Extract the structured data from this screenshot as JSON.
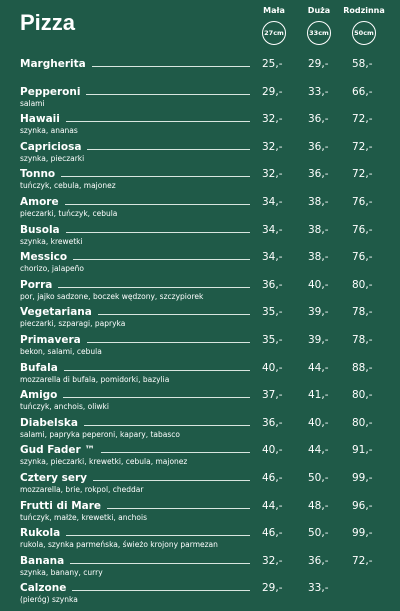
{
  "header": {
    "title": "Pizza"
  },
  "columns": [
    {
      "label": "Mała",
      "size": "27cm"
    },
    {
      "label": "Duża",
      "size": "33cm"
    },
    {
      "label": "Rodzinna",
      "size": "50cm"
    }
  ],
  "items": [
    {
      "name": "Margherita",
      "prices": [
        "25,-",
        "29,-",
        "58,-"
      ]
    },
    {
      "name": "Pepperoni",
      "description": "salami",
      "prices": [
        "29,-",
        "33,-",
        "66,-"
      ]
    },
    {
      "name": "Hawaii",
      "description": "szynka, ananas",
      "prices": [
        "32,-",
        "36,-",
        "72,-"
      ]
    },
    {
      "name": "Capriciosa",
      "description": "szynka, pieczarki",
      "prices": [
        "32,-",
        "36,-",
        "72,-"
      ]
    },
    {
      "name": "Tonno",
      "description": "tuńczyk, cebula, majonez",
      "prices": [
        "32,-",
        "36,-",
        "72,-"
      ]
    },
    {
      "name": "Amore",
      "description": "pieczarki, tuńczyk, cebula",
      "prices": [
        "34,-",
        "38,-",
        "76,-"
      ]
    },
    {
      "name": "Busola",
      "description": "szynka, krewetki",
      "prices": [
        "34,-",
        "38,-",
        "76,-"
      ]
    },
    {
      "name": "Messico",
      "description": "chorizo, jalapeño",
      "prices": [
        "34,-",
        "38,-",
        "76,-"
      ]
    },
    {
      "name": "Porra",
      "description": "por, jajko sadzone, boczek wędzony, szczypiorek",
      "prices": [
        "36,-",
        "40,-",
        "80,-"
      ]
    },
    {
      "name": "Vegetariana",
      "description": "pieczarki, szparagi, papryka",
      "prices": [
        "35,-",
        "39,-",
        "78,-"
      ]
    },
    {
      "name": "Primavera",
      "description": "bekon, salami, cebula",
      "prices": [
        "35,-",
        "39,-",
        "78,-"
      ]
    },
    {
      "name": "Bufala",
      "description": "mozzarella di bufala, pomidorki, bazylia",
      "prices": [
        "40,-",
        "44,-",
        "88,-"
      ]
    },
    {
      "name": "Amigo",
      "description": "tuńczyk, anchois, oliwki",
      "prices": [
        "37,-",
        "41,-",
        "80,-"
      ]
    },
    {
      "name": "Diabelska",
      "description": "salami, papryka peperoni, kapary, tabasco",
      "prices": [
        "36,-",
        "40,-",
        "80,-"
      ]
    },
    {
      "name": "Gud Fader ™",
      "description": "szynka, pieczarki, krewetki, cebula, majonez",
      "prices": [
        "40,-",
        "44,-",
        "91,-"
      ]
    },
    {
      "name": "Cztery sery",
      "description": "mozzarella, brie, rokpol, cheddar",
      "prices": [
        "46,-",
        "50,-",
        "99,-"
      ]
    },
    {
      "name": "Frutti di Mare",
      "description": "tuńczyk, małże, krewetki, anchois",
      "prices": [
        "44,-",
        "48,-",
        "96,-"
      ]
    },
    {
      "name": "Rukola",
      "description": "rukola, szynka parmeńska, świeżo krojony parmezan",
      "prices": [
        "46,-",
        "50,-",
        "99,-"
      ]
    },
    {
      "name": "Banana",
      "description": "szynka, banany, curry",
      "prices": [
        "32,-",
        "36,-",
        "72,-"
      ]
    },
    {
      "name": "Calzone",
      "description": "(pieróg) szynka",
      "prices": [
        "29,-",
        "33,-"
      ]
    }
  ]
}
